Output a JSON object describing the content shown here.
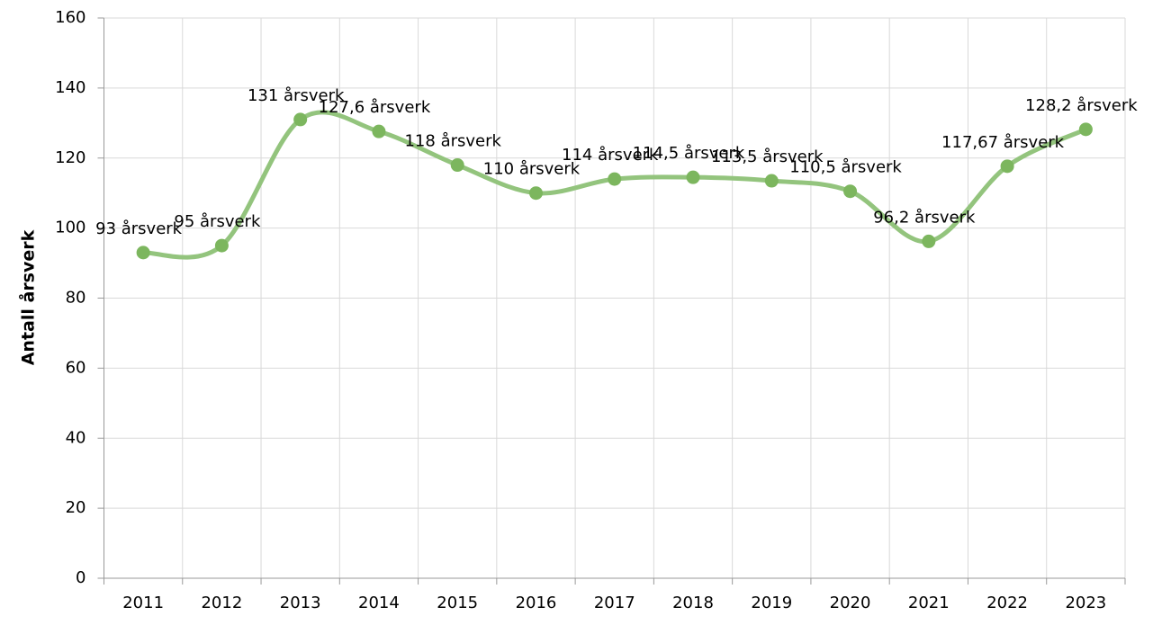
{
  "chart_data": {
    "type": "line",
    "y_label": "Antall årsverk",
    "categories": [
      "2011",
      "2012",
      "2013",
      "2014",
      "2015",
      "2016",
      "2017",
      "2018",
      "2019",
      "2020",
      "2021",
      "2022",
      "2023"
    ],
    "series": [
      {
        "name": "Antall årsverk",
        "color": "#93c47d",
        "marker_color": "#7cb65e",
        "values": [
          93,
          95,
          131,
          127.6,
          118,
          110,
          114,
          114.5,
          113.5,
          110.5,
          96.2,
          117.67,
          128.2
        ],
        "value_labels": [
          "93 årsverk",
          "95 årsverk",
          "131 årsverk",
          "127,6 årsverk",
          "118 årsverk",
          "110 årsverk",
          "114 årsverk",
          "114,5 årsverk",
          "113,5 årsverk",
          "110,5 årsverk",
          "96,2 årsverk",
          "117,67 årsverk",
          "128,2 årsverk"
        ]
      }
    ],
    "ylim": [
      0,
      160
    ],
    "yticks": [
      0,
      20,
      40,
      60,
      80,
      100,
      120,
      140,
      160
    ],
    "grid": true,
    "smooth": true
  }
}
